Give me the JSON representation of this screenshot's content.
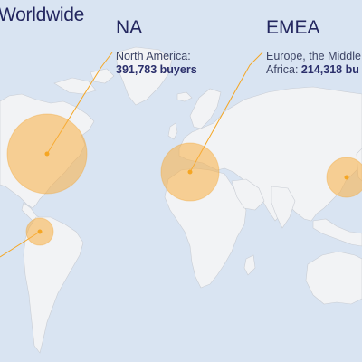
{
  "title": "Worldwide",
  "accent_color": "#f5a623",
  "text_color": "#23265f",
  "regions": [
    {
      "name": "NA",
      "description": "North America:",
      "buyers": "391,783 buyers"
    },
    {
      "name": "EMEA",
      "description_line1": "Europe, the Middle",
      "description_line2": "Africa:",
      "buyers": "214,318 bu"
    }
  ]
}
